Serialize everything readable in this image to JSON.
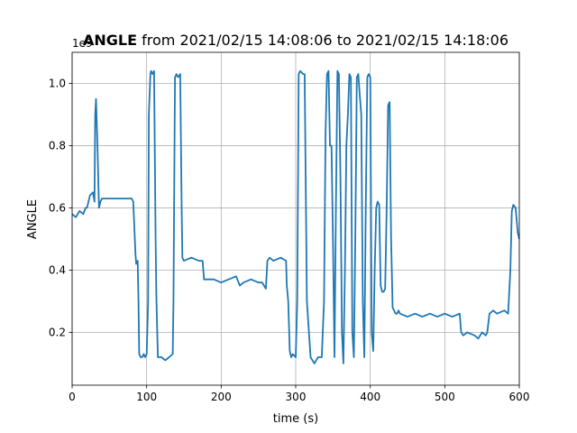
{
  "chart_data": {
    "type": "line",
    "title_bold": "ANGLE",
    "title_rest": " from 2021/02/15 14:08:06 to 2021/02/15 14:18:06",
    "xlabel": "time (s)",
    "ylabel": "ANGLE",
    "offset_label": "1e9",
    "xlim": [
      0,
      600
    ],
    "ylim": [
      0.03,
      1.1
    ],
    "xticks": [
      0,
      100,
      200,
      300,
      400,
      500,
      600
    ],
    "yticks": [
      0.2,
      0.4,
      0.6,
      0.8,
      1.0
    ],
    "grid": true,
    "line_color": "#1f77b4",
    "series": [
      {
        "x": [
          0,
          5,
          10,
          15,
          18,
          20,
          24,
          28,
          30,
          31,
          32,
          34,
          36,
          38,
          40,
          50,
          60,
          70,
          80,
          82,
          85,
          86,
          88,
          89,
          90,
          92,
          94,
          96,
          98,
          100,
          102,
          103,
          105,
          106,
          108,
          110,
          112,
          113,
          115,
          117,
          120,
          125,
          130,
          135,
          136,
          138,
          140,
          142,
          145,
          147,
          148,
          150,
          160,
          170,
          175,
          177,
          180,
          190,
          200,
          210,
          220,
          225,
          230,
          240,
          250,
          255,
          260,
          262,
          265,
          270,
          280,
          287,
          288,
          290,
          292,
          294,
          296,
          300,
          302,
          304,
          306,
          310,
          312,
          315,
          320,
          325,
          330,
          335,
          338,
          340,
          342,
          344,
          346,
          348,
          350,
          352,
          354,
          356,
          358,
          360,
          362,
          364,
          366,
          368,
          370,
          372,
          374,
          376,
          378,
          380,
          382,
          384,
          386,
          388,
          390,
          392,
          394,
          396,
          398,
          400,
          402,
          404,
          406,
          408,
          410,
          412,
          414,
          416,
          418,
          420,
          422,
          424,
          426,
          428,
          430,
          432,
          434,
          436,
          438,
          440,
          450,
          460,
          470,
          480,
          490,
          500,
          510,
          520,
          522,
          525,
          530,
          540,
          545,
          550,
          555,
          557,
          560,
          565,
          570,
          580,
          585,
          588,
          590,
          592,
          595,
          598,
          600
        ],
        "y": [
          0.58,
          0.57,
          0.59,
          0.58,
          0.6,
          0.6,
          0.64,
          0.65,
          0.62,
          0.9,
          0.95,
          0.8,
          0.6,
          0.62,
          0.63,
          0.63,
          0.63,
          0.63,
          0.63,
          0.62,
          0.45,
          0.42,
          0.43,
          0.3,
          0.13,
          0.12,
          0.12,
          0.13,
          0.12,
          0.13,
          0.3,
          0.9,
          1.03,
          1.04,
          1.03,
          1.04,
          0.5,
          0.32,
          0.12,
          0.12,
          0.12,
          0.11,
          0.12,
          0.13,
          0.3,
          1.02,
          1.03,
          1.02,
          1.03,
          0.6,
          0.44,
          0.43,
          0.44,
          0.43,
          0.43,
          0.37,
          0.37,
          0.37,
          0.36,
          0.37,
          0.38,
          0.35,
          0.36,
          0.37,
          0.36,
          0.36,
          0.34,
          0.43,
          0.44,
          0.43,
          0.44,
          0.43,
          0.35,
          0.3,
          0.14,
          0.12,
          0.13,
          0.12,
          0.3,
          1.03,
          1.04,
          1.03,
          1.03,
          0.3,
          0.12,
          0.1,
          0.12,
          0.12,
          0.3,
          0.84,
          1.03,
          1.04,
          0.8,
          0.8,
          0.5,
          0.12,
          0.6,
          1.04,
          1.03,
          0.7,
          0.2,
          0.1,
          0.4,
          0.8,
          0.9,
          1.03,
          1.02,
          0.2,
          0.12,
          0.5,
          1.02,
          1.03,
          0.96,
          0.9,
          0.3,
          0.12,
          0.6,
          1.02,
          1.03,
          1.02,
          0.2,
          0.14,
          0.4,
          0.6,
          0.62,
          0.61,
          0.35,
          0.33,
          0.33,
          0.34,
          0.6,
          0.93,
          0.94,
          0.5,
          0.28,
          0.27,
          0.26,
          0.26,
          0.27,
          0.26,
          0.25,
          0.26,
          0.25,
          0.26,
          0.25,
          0.26,
          0.25,
          0.26,
          0.2,
          0.19,
          0.2,
          0.19,
          0.18,
          0.2,
          0.19,
          0.2,
          0.26,
          0.27,
          0.26,
          0.27,
          0.26,
          0.4,
          0.59,
          0.61,
          0.6,
          0.52,
          0.5
        ]
      }
    ]
  }
}
